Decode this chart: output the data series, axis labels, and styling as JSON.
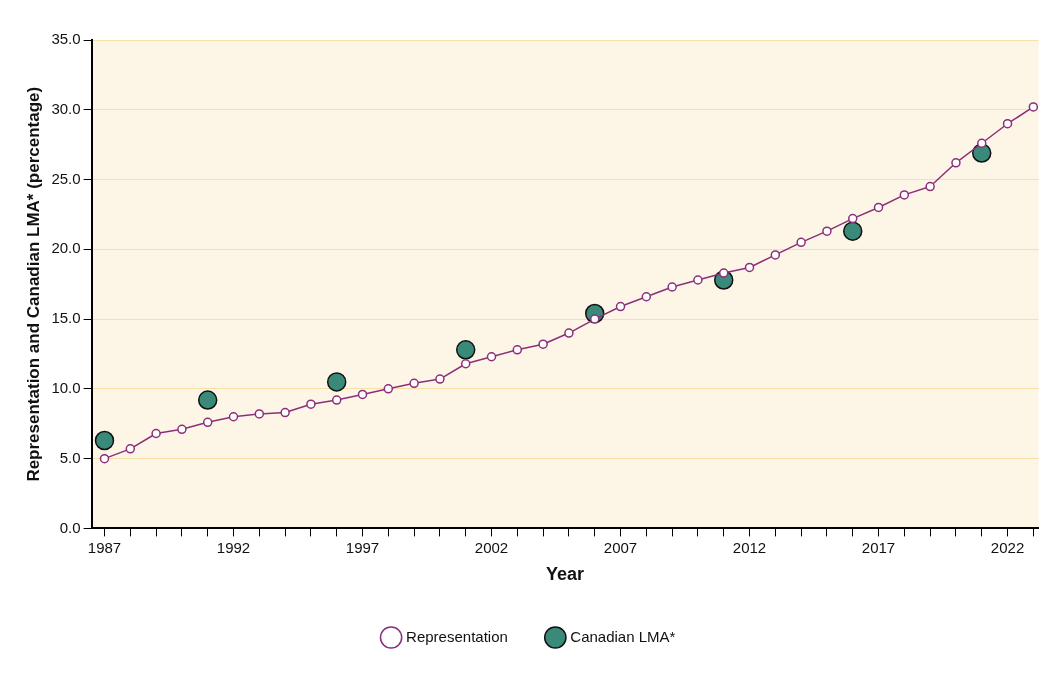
{
  "chart_data": {
    "type": "line",
    "xlabel": "Year",
    "ylabel": "Representation and Canadian LMA* (percentage)",
    "xlim": [
      1986.5,
      2023.2
    ],
    "xticks": [
      {
        "value": 1987,
        "label": "1987"
      },
      {
        "value": 1988,
        "label": null
      },
      {
        "value": 1989,
        "label": null
      },
      {
        "value": 1990,
        "label": null
      },
      {
        "value": 1991,
        "label": null
      },
      {
        "value": 1992,
        "label": "1992"
      },
      {
        "value": 1993,
        "label": null
      },
      {
        "value": 1994,
        "label": null
      },
      {
        "value": 1995,
        "label": null
      },
      {
        "value": 1996,
        "label": null
      },
      {
        "value": 1997,
        "label": "1997"
      },
      {
        "value": 1998,
        "label": null
      },
      {
        "value": 1999,
        "label": null
      },
      {
        "value": 2000,
        "label": null
      },
      {
        "value": 2001,
        "label": null
      },
      {
        "value": 2002,
        "label": "2002"
      },
      {
        "value": 2003,
        "label": null
      },
      {
        "value": 2004,
        "label": null
      },
      {
        "value": 2005,
        "label": null
      },
      {
        "value": 2006,
        "label": null
      },
      {
        "value": 2007,
        "label": "2007"
      },
      {
        "value": 2008,
        "label": null
      },
      {
        "value": 2009,
        "label": null
      },
      {
        "value": 2010,
        "label": null
      },
      {
        "value": 2011,
        "label": null
      },
      {
        "value": 2012,
        "label": "2012"
      },
      {
        "value": 2013,
        "label": null
      },
      {
        "value": 2014,
        "label": null
      },
      {
        "value": 2015,
        "label": null
      },
      {
        "value": 2016,
        "label": null
      },
      {
        "value": 2017,
        "label": "2017"
      },
      {
        "value": 2018,
        "label": null
      },
      {
        "value": 2019,
        "label": null
      },
      {
        "value": 2020,
        "label": null
      },
      {
        "value": 2021,
        "label": null
      },
      {
        "value": 2022,
        "label": "2022"
      },
      {
        "value": 2023,
        "label": null
      }
    ],
    "ylim": [
      0,
      35
    ],
    "yticks": [
      {
        "value": 0,
        "label": "0.0"
      },
      {
        "value": 5,
        "label": "5.0"
      },
      {
        "value": 10,
        "label": "10.0"
      },
      {
        "value": 15,
        "label": "15.0"
      },
      {
        "value": 20,
        "label": "20.0"
      },
      {
        "value": 25,
        "label": "25.0"
      },
      {
        "value": 30,
        "label": "30.0"
      },
      {
        "value": 35,
        "label": "35.0"
      }
    ],
    "grid": "y",
    "legend": "bottom",
    "marker": "circle",
    "line_style": "solid",
    "series": [
      {
        "name": "Canadian LMA*",
        "type": "scatter",
        "color": "#3a8a7a",
        "x": [
          1987,
          1991,
          1996,
          2001,
          2006,
          2011,
          2016,
          2021
        ],
        "values": [
          6.3,
          9.2,
          10.5,
          12.8,
          15.4,
          17.8,
          21.3,
          26.9
        ]
      },
      {
        "name": "Representation",
        "type": "line",
        "color": "#8b2f7a",
        "x": [
          1987,
          1988,
          1989,
          1990,
          1991,
          1992,
          1993,
          1994,
          1995,
          1996,
          1997,
          1998,
          1999,
          2000,
          2001,
          2002,
          2003,
          2004,
          2005,
          2006,
          2007,
          2008,
          2009,
          2010,
          2011,
          2012,
          2013,
          2014,
          2015,
          2016,
          2017,
          2018,
          2019,
          2020,
          2021,
          2022,
          2023
        ],
        "values": [
          5.0,
          5.7,
          6.8,
          7.1,
          7.6,
          8.0,
          8.2,
          8.3,
          8.9,
          9.2,
          9.6,
          10.0,
          10.4,
          10.7,
          11.8,
          12.3,
          12.8,
          13.2,
          14.0,
          15.0,
          15.9,
          16.6,
          17.3,
          17.8,
          18.3,
          18.7,
          19.6,
          20.5,
          21.3,
          22.2,
          23.0,
          23.9,
          24.5,
          26.2,
          27.6,
          29.0,
          30.2
        ]
      }
    ]
  }
}
